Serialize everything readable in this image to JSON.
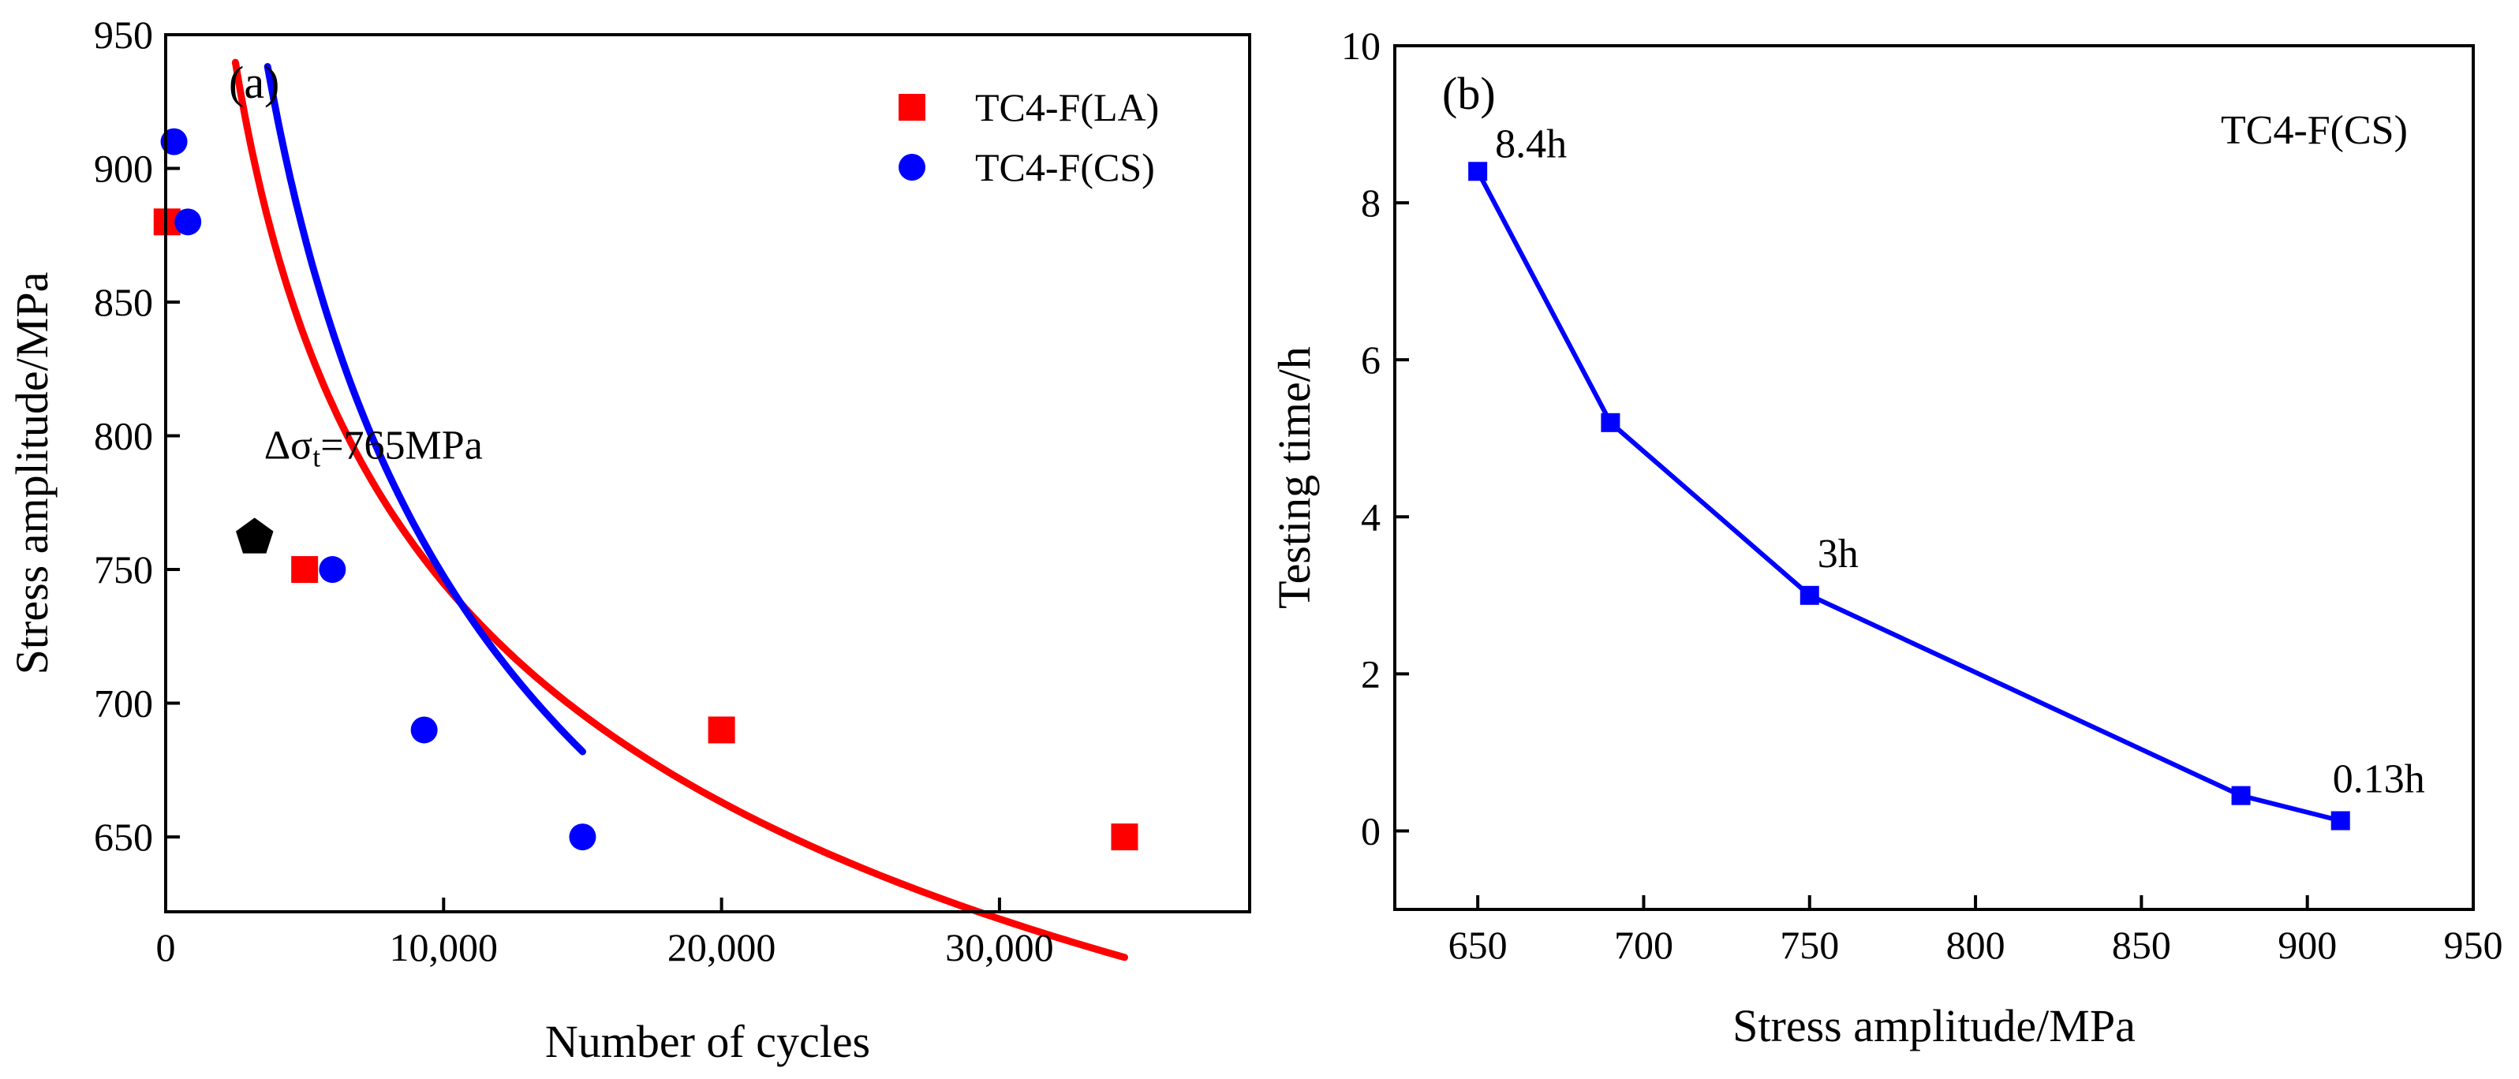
{
  "chart_data": [
    {
      "type": "scatter",
      "panel_label": "(a)",
      "title": "",
      "xlabel": "Number of cycles",
      "ylabel": "Stress amplitude/MPa",
      "xlim": [
        0,
        39000
      ],
      "ylim": [
        622,
        950
      ],
      "xticks": [
        0,
        10000,
        20000,
        30000
      ],
      "xtick_labels": [
        "0",
        "10,000",
        "20,000",
        "30,000"
      ],
      "yticks": [
        650,
        700,
        750,
        800,
        850,
        900,
        950
      ],
      "ytick_labels": [
        "650",
        "700",
        "750",
        "800",
        "850",
        "900",
        "950"
      ],
      "legend_position": "top-right",
      "series": [
        {
          "name": "TC4-F(LA)",
          "color": "#ff0000",
          "marker": "square",
          "points": [
            [
              50,
              880
            ],
            [
              5000,
              750
            ],
            [
              20000,
              690
            ],
            [
              34500,
              650
            ]
          ],
          "fit": {
            "form": "power",
            "a": 3500,
            "b": -0.168,
            "x_range": [
              60,
              34500
            ]
          }
        },
        {
          "name": "TC4-F(CS)",
          "color": "#0000ff",
          "marker": "circle",
          "points": [
            [
              300,
              910
            ],
            [
              800,
              880
            ],
            [
              6000,
              750
            ],
            [
              9300,
              690
            ],
            [
              15000,
              650
            ]
          ],
          "fit": {
            "form": "power",
            "a": 6020,
            "b": -0.2265,
            "x_range": [
              120,
              15000
            ]
          }
        }
      ],
      "special_point": {
        "x": 3200,
        "y": 762,
        "marker": "pentagon",
        "color": "#000000"
      },
      "annotation": {
        "prefix": "Δσ",
        "subscript": "t",
        "suffix": "=765MPa"
      }
    },
    {
      "type": "line",
      "panel_label": "(b)",
      "title": "",
      "inset_label": "TC4-F(CS)",
      "xlabel": "Stress amplitude/MPa",
      "ylabel": "Testing time/h",
      "xlim": [
        625,
        950
      ],
      "ylim": [
        -1,
        10
      ],
      "xticks": [
        650,
        700,
        750,
        800,
        850,
        900,
        950
      ],
      "xtick_labels": [
        "650",
        "700",
        "750",
        "800",
        "850",
        "900",
        "950"
      ],
      "yticks": [
        0,
        2,
        4,
        6,
        8,
        10
      ],
      "ytick_labels": [
        "0",
        "2",
        "4",
        "6",
        "8",
        "10"
      ],
      "series": [
        {
          "name": "TC4-F(CS)",
          "color": "#0000ff",
          "marker": "square",
          "x": [
            650,
            690,
            750,
            880,
            910
          ],
          "y": [
            8.4,
            5.2,
            3.0,
            0.45,
            0.13
          ]
        }
      ],
      "annotations": [
        {
          "text": "8.4h",
          "x": 650,
          "y": 8.4
        },
        {
          "text": "3h",
          "x": 750,
          "y": 3.0
        },
        {
          "text": "0.13h",
          "x": 910,
          "y": 0.13
        }
      ]
    }
  ]
}
